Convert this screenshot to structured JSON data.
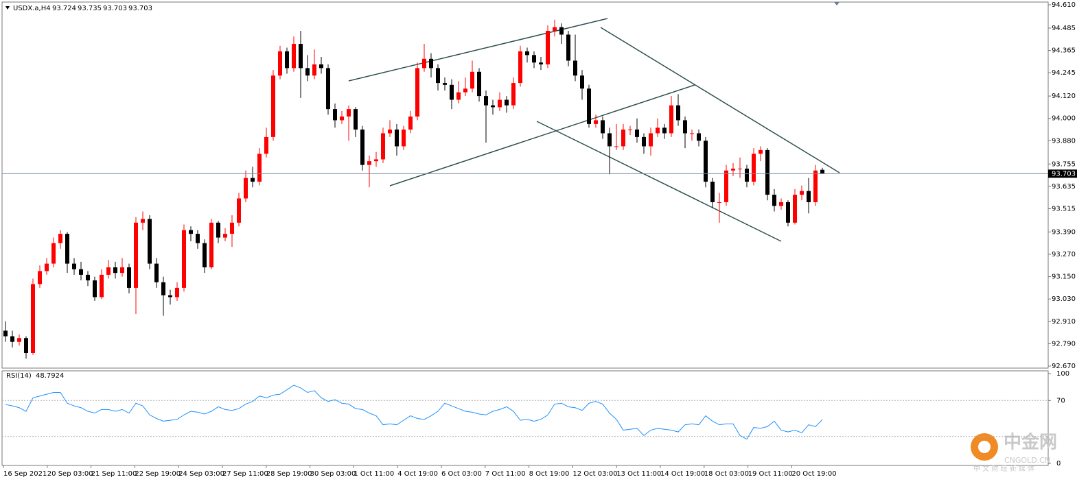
{
  "chart_data": {
    "type": "candlestick",
    "symbol": "USDX.a,H4",
    "up_color": "#ff0000",
    "down_color": "#000000",
    "grid": false,
    "ylim": [
      92.67,
      94.61
    ],
    "yticks": [
      {
        "value": 94.61,
        "label": "94.610"
      },
      94.485,
      94.365,
      94.245,
      {
        "value": 94.12,
        "label": "94.120"
      },
      {
        "value": 94.0,
        "label": "94.000"
      },
      {
        "value": 93.88,
        "label": "93.880"
      },
      93.755,
      93.635,
      93.515,
      {
        "value": 93.39,
        "label": "93.390"
      },
      {
        "value": 93.27,
        "label": "93.270"
      },
      {
        "value": 93.15,
        "label": "93.150"
      },
      {
        "value": 93.03,
        "label": "93.030"
      },
      {
        "value": 92.91,
        "label": "92.910"
      },
      {
        "value": 92.79,
        "label": "92.790"
      },
      {
        "value": 92.67,
        "label": "92.670"
      }
    ],
    "x_labels": [
      "16 Sep 2021",
      "20 Sep 03:00",
      "21 Sep 11:00",
      "22 Sep 19:00",
      "24 Sep 03:00",
      "27 Sep 11:00",
      "28 Sep 19:00",
      "30 Sep 03:00",
      "1 Oct 11:00",
      "4 Oct 19:00",
      "6 Oct 03:00",
      "7 Oct 11:00",
      "8 Oct 19:00",
      "12 Oct 03:00",
      "13 Oct 11:00",
      "14 Oct 19:00",
      "18 Oct 03:00",
      "19 Oct 11:00",
      "20 Oct 19:00"
    ],
    "candles": [
      [
        92.86,
        92.91,
        92.8,
        92.83
      ],
      [
        92.83,
        92.86,
        92.77,
        92.8
      ],
      [
        92.8,
        92.84,
        92.78,
        92.82
      ],
      [
        92.82,
        92.83,
        92.71,
        92.74
      ],
      [
        92.74,
        93.14,
        92.73,
        93.11
      ],
      [
        93.11,
        93.21,
        93.09,
        93.18
      ],
      [
        93.18,
        93.25,
        93.16,
        93.22
      ],
      [
        93.22,
        93.36,
        93.2,
        93.33
      ],
      [
        93.33,
        93.4,
        93.3,
        93.38
      ],
      [
        93.38,
        93.39,
        93.17,
        93.22
      ],
      [
        93.22,
        93.25,
        93.16,
        93.19
      ],
      [
        93.19,
        93.23,
        93.13,
        93.16
      ],
      [
        93.16,
        93.18,
        93.1,
        93.13
      ],
      [
        93.13,
        93.15,
        93.02,
        93.04
      ],
      [
        93.04,
        93.19,
        93.03,
        93.16
      ],
      [
        93.16,
        93.24,
        93.14,
        93.2
      ],
      [
        93.2,
        93.23,
        93.14,
        93.17
      ],
      [
        93.17,
        93.25,
        93.15,
        93.2
      ],
      [
        93.2,
        93.22,
        93.06,
        93.09
      ],
      [
        93.09,
        93.47,
        92.95,
        93.44
      ],
      [
        93.44,
        93.5,
        93.4,
        93.46
      ],
      [
        93.46,
        93.48,
        93.19,
        93.22
      ],
      [
        93.22,
        93.25,
        93.09,
        93.12
      ],
      [
        93.12,
        93.15,
        92.94,
        93.05
      ],
      [
        93.05,
        93.08,
        93.0,
        93.04
      ],
      [
        93.04,
        93.12,
        93.02,
        93.09
      ],
      [
        93.09,
        93.43,
        93.07,
        93.4
      ],
      [
        93.4,
        93.42,
        93.34,
        93.38
      ],
      [
        93.38,
        93.4,
        93.3,
        93.33
      ],
      [
        93.33,
        93.35,
        93.17,
        93.2
      ],
      [
        93.2,
        93.46,
        93.19,
        93.44
      ],
      [
        93.44,
        93.45,
        93.33,
        93.36
      ],
      [
        93.36,
        93.41,
        93.34,
        93.38
      ],
      [
        93.38,
        93.48,
        93.31,
        93.44
      ],
      [
        93.44,
        93.6,
        93.42,
        93.57
      ],
      [
        93.57,
        93.72,
        93.55,
        93.68
      ],
      [
        93.68,
        93.74,
        93.63,
        93.66
      ],
      [
        93.66,
        93.84,
        93.64,
        93.81
      ],
      [
        93.81,
        93.95,
        93.79,
        93.9
      ],
      [
        93.9,
        94.26,
        93.88,
        94.23
      ],
      [
        94.23,
        94.39,
        94.21,
        94.36
      ],
      [
        94.36,
        94.38,
        94.24,
        94.27
      ],
      [
        94.27,
        94.44,
        94.25,
        94.4
      ],
      [
        94.4,
        94.47,
        94.11,
        94.27
      ],
      [
        94.27,
        94.34,
        94.2,
        94.23
      ],
      [
        94.23,
        94.37,
        94.21,
        94.29
      ],
      [
        94.29,
        94.33,
        94.24,
        94.27
      ],
      [
        94.27,
        94.29,
        94.02,
        94.05
      ],
      [
        94.05,
        94.08,
        93.95,
        93.99
      ],
      [
        93.99,
        94.04,
        93.97,
        94.01
      ],
      [
        94.01,
        94.07,
        93.88,
        94.05
      ],
      [
        94.05,
        94.06,
        93.9,
        93.94
      ],
      [
        93.94,
        93.96,
        93.72,
        93.75
      ],
      [
        93.75,
        93.8,
        93.63,
        93.77
      ],
      [
        93.77,
        93.82,
        93.74,
        93.78
      ],
      [
        93.78,
        93.95,
        93.76,
        93.92
      ],
      [
        93.92,
        93.99,
        93.9,
        93.94
      ],
      [
        93.94,
        93.97,
        93.8,
        93.85
      ],
      [
        93.85,
        93.96,
        93.83,
        93.94
      ],
      [
        93.94,
        94.04,
        93.92,
        94.01
      ],
      [
        94.01,
        94.3,
        93.99,
        94.27
      ],
      [
        94.27,
        94.4,
        94.25,
        94.32
      ],
      [
        94.32,
        94.35,
        94.22,
        94.27
      ],
      [
        94.27,
        94.29,
        94.15,
        94.19
      ],
      [
        94.19,
        94.22,
        94.15,
        94.18
      ],
      [
        94.18,
        94.21,
        94.05,
        94.1
      ],
      [
        94.1,
        94.2,
        94.08,
        94.14
      ],
      [
        94.14,
        94.22,
        94.12,
        94.16
      ],
      [
        94.16,
        94.31,
        94.14,
        94.25
      ],
      [
        94.25,
        94.27,
        94.09,
        94.12
      ],
      [
        94.12,
        94.15,
        93.87,
        94.07
      ],
      [
        94.07,
        94.1,
        94.02,
        94.06
      ],
      [
        94.06,
        94.14,
        94.04,
        94.1
      ],
      [
        94.1,
        94.12,
        94.03,
        94.07
      ],
      [
        94.07,
        94.22,
        94.05,
        94.19
      ],
      [
        94.19,
        94.39,
        94.17,
        94.36
      ],
      [
        94.36,
        94.38,
        94.3,
        94.34
      ],
      [
        94.34,
        94.36,
        94.27,
        94.3
      ],
      [
        94.3,
        94.33,
        94.26,
        94.29
      ],
      [
        94.29,
        94.5,
        94.27,
        94.47
      ],
      [
        94.47,
        94.53,
        94.44,
        94.49
      ],
      [
        94.49,
        94.51,
        94.4,
        94.45
      ],
      [
        94.45,
        94.47,
        94.28,
        94.31
      ],
      [
        94.31,
        94.45,
        94.2,
        94.23
      ],
      [
        94.23,
        94.26,
        94.1,
        94.16
      ],
      [
        94.16,
        94.18,
        93.95,
        93.97
      ],
      [
        93.97,
        94.02,
        93.95,
        93.99
      ],
      [
        93.99,
        94.01,
        93.89,
        93.92
      ],
      [
        93.92,
        93.95,
        93.7,
        93.85
      ],
      [
        93.85,
        93.97,
        93.83,
        93.85
      ],
      [
        93.85,
        93.97,
        93.83,
        93.94
      ],
      [
        93.94,
        93.96,
        93.91,
        93.94
      ],
      [
        93.94,
        94.0,
        93.87,
        93.9
      ],
      [
        93.9,
        93.92,
        93.81,
        93.85
      ],
      [
        93.85,
        93.95,
        93.8,
        93.92
      ],
      [
        93.92,
        94.0,
        93.9,
        93.95
      ],
      [
        93.95,
        93.97,
        93.89,
        93.92
      ],
      [
        93.92,
        94.12,
        93.9,
        94.07
      ],
      [
        94.07,
        94.13,
        93.96,
        93.99
      ],
      [
        93.99,
        94.01,
        93.84,
        93.92
      ],
      [
        93.92,
        93.94,
        93.88,
        93.92
      ],
      [
        93.92,
        93.94,
        93.85,
        93.88
      ],
      [
        93.88,
        93.9,
        93.63,
        93.66
      ],
      [
        93.66,
        93.68,
        93.52,
        93.55
      ],
      [
        93.55,
        93.6,
        93.44,
        93.55
      ],
      [
        93.55,
        93.75,
        93.53,
        93.72
      ],
      [
        93.72,
        93.76,
        93.69,
        93.73
      ],
      [
        93.73,
        93.79,
        93.68,
        93.73
      ],
      [
        93.73,
        93.75,
        93.63,
        93.66
      ],
      [
        93.66,
        93.84,
        93.64,
        93.81
      ],
      [
        93.81,
        93.85,
        93.77,
        93.83
      ],
      [
        93.83,
        93.84,
        93.56,
        93.59
      ],
      [
        93.59,
        93.62,
        93.5,
        93.53
      ],
      [
        93.53,
        93.57,
        93.51,
        93.55
      ],
      [
        93.55,
        93.56,
        93.42,
        93.44
      ],
      [
        93.44,
        93.62,
        93.43,
        93.59
      ],
      [
        93.59,
        93.64,
        93.56,
        93.61
      ],
      [
        93.61,
        93.68,
        93.49,
        93.55
      ],
      [
        93.55,
        93.75,
        93.53,
        93.72
      ],
      [
        93.724,
        93.735,
        93.703,
        93.703
      ]
    ],
    "indicator": {
      "type": "line",
      "name": "RSI(14)",
      "color": "#1e90ff",
      "ylim": [
        0,
        100
      ],
      "yticks": [
        100,
        70,
        0
      ],
      "levels": [
        70,
        30
      ],
      "values": [
        65.6,
        64,
        62,
        58,
        73,
        75,
        77,
        79,
        79,
        67,
        64,
        62,
        58,
        56,
        60,
        60,
        58,
        60,
        56,
        67,
        64,
        54,
        50,
        47,
        48,
        49,
        54,
        58,
        57,
        55,
        58,
        63,
        60,
        59,
        61,
        66,
        69,
        75,
        73,
        76,
        77,
        82,
        87,
        84,
        79,
        81,
        73,
        69,
        71,
        67,
        66,
        61,
        60,
        56,
        53,
        43,
        44,
        43,
        48,
        53,
        50,
        49,
        53,
        58,
        67,
        64,
        61,
        58,
        57,
        55,
        54,
        58,
        60,
        63,
        58,
        48,
        49,
        47,
        49,
        54,
        66,
        67,
        63,
        62,
        59,
        67,
        69,
        66,
        56,
        49,
        37,
        38,
        39,
        31,
        37,
        39,
        38,
        37,
        35,
        43,
        44,
        43,
        53,
        47,
        43,
        44,
        44,
        31,
        27,
        40,
        39,
        41,
        47,
        37,
        35,
        37,
        34,
        43,
        41,
        48.7924
      ]
    }
  },
  "watermark": {
    "name": "中金网",
    "domain": "CNGOLD.CN",
    "slogan": "中 文 财 经 新 媒 体"
  }
}
